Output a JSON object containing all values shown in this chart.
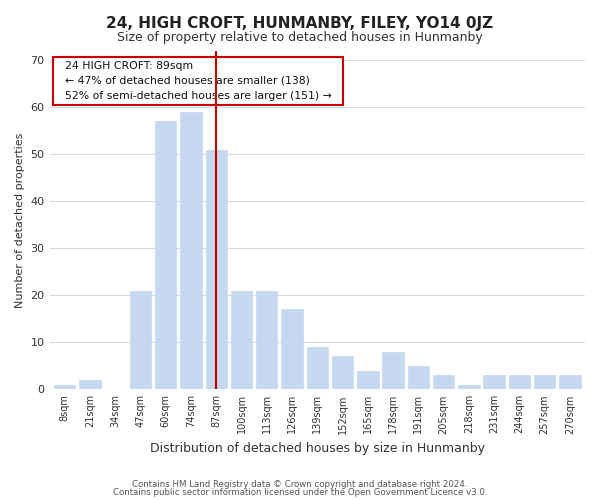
{
  "title": "24, HIGH CROFT, HUNMANBY, FILEY, YO14 0JZ",
  "subtitle": "Size of property relative to detached houses in Hunmanby",
  "xlabel": "Distribution of detached houses by size in Hunmanby",
  "ylabel": "Number of detached properties",
  "bar_labels": [
    "8sqm",
    "21sqm",
    "34sqm",
    "47sqm",
    "60sqm",
    "74sqm",
    "87sqm",
    "100sqm",
    "113sqm",
    "126sqm",
    "139sqm",
    "152sqm",
    "165sqm",
    "178sqm",
    "191sqm",
    "205sqm",
    "218sqm",
    "231sqm",
    "244sqm",
    "257sqm",
    "270sqm"
  ],
  "bar_values": [
    1,
    2,
    0,
    21,
    57,
    59,
    51,
    21,
    21,
    17,
    9,
    7,
    4,
    8,
    5,
    3,
    1,
    3,
    3,
    3,
    3
  ],
  "bar_color": "#c5d8f0",
  "vline_x": 6,
  "vline_color": "#cc0000",
  "ylim": [
    0,
    72
  ],
  "yticks": [
    0,
    10,
    20,
    30,
    40,
    50,
    60,
    70
  ],
  "annotation_title": "24 HIGH CROFT: 89sqm",
  "annotation_line1": "← 47% of detached houses are smaller (138)",
  "annotation_line2": "52% of semi-detached houses are larger (151) →",
  "annotation_box_color": "#ffffff",
  "annotation_border_color": "#cc0000",
  "footer1": "Contains HM Land Registry data © Crown copyright and database right 2024.",
  "footer2": "Contains public sector information licensed under the Open Government Licence v3.0.",
  "bg_color": "#ffffff",
  "grid_color": "#d0dce8"
}
